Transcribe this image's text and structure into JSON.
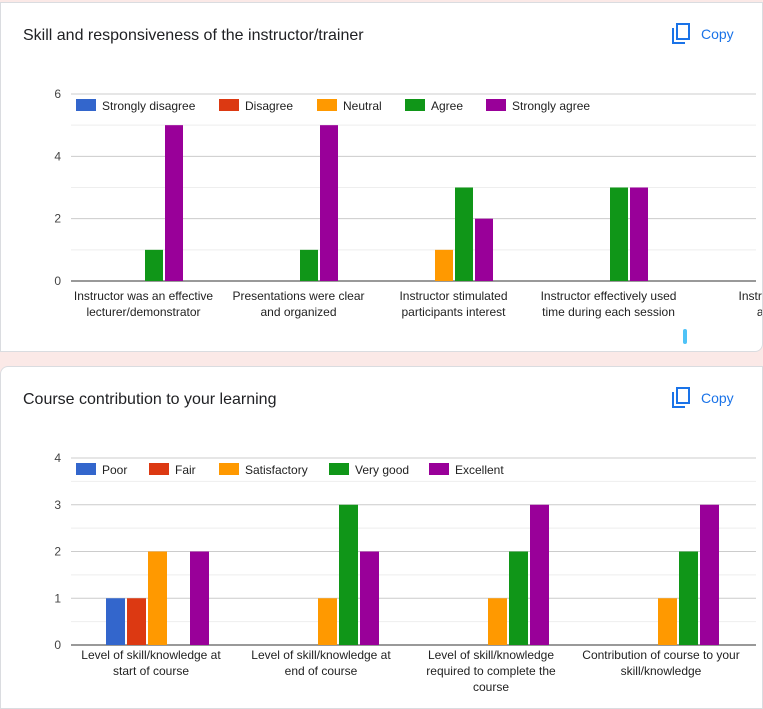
{
  "chart_data": [
    {
      "type": "bar",
      "title": "Skill and responsiveness of the instructor/trainer",
      "copy_label": "Copy",
      "ylim": [
        0,
        6
      ],
      "yticks": [
        "0",
        "2",
        "4",
        "6"
      ],
      "grid": true,
      "legend_position": "top",
      "categories": [
        [
          "Instructor was an effective",
          "lecturer/demonstrator"
        ],
        [
          "Presentations were clear",
          "and organized"
        ],
        [
          "Instructor stimulated",
          "participants interest"
        ],
        [
          "Instructor effectively used",
          "time during each session"
        ],
        [
          "Instructor",
          "an"
        ]
      ],
      "series": [
        {
          "name": "Strongly disagree",
          "color": "#3366cc",
          "values": [
            0,
            0,
            0,
            0,
            null
          ]
        },
        {
          "name": "Disagree",
          "color": "#dc3912",
          "values": [
            0,
            0,
            0,
            0,
            null
          ]
        },
        {
          "name": "Neutral",
          "color": "#ff9900",
          "values": [
            0,
            0,
            1,
            0,
            null
          ]
        },
        {
          "name": "Agree",
          "color": "#109618",
          "values": [
            1,
            1,
            3,
            3,
            null
          ]
        },
        {
          "name": "Strongly agree",
          "color": "#990099",
          "values": [
            5,
            5,
            2,
            3,
            null
          ]
        }
      ]
    },
    {
      "type": "bar",
      "title": "Course contribution to your learning",
      "copy_label": "Copy",
      "ylim": [
        0,
        4
      ],
      "yticks": [
        "0",
        "1",
        "2",
        "3",
        "4"
      ],
      "grid": true,
      "legend_position": "top",
      "categories": [
        [
          "Level of skill/knowledge at",
          "start of course"
        ],
        [
          "Level of skill/knowledge at",
          "end of course"
        ],
        [
          "Level of skill/knowledge",
          "required to complete the",
          "course"
        ],
        [
          "Contribution of course to your",
          "skill/knowledge"
        ]
      ],
      "series": [
        {
          "name": "Poor",
          "color": "#3366cc",
          "values": [
            1,
            0,
            0,
            0
          ]
        },
        {
          "name": "Fair",
          "color": "#dc3912",
          "values": [
            1,
            0,
            0,
            0
          ]
        },
        {
          "name": "Satisfactory",
          "color": "#ff9900",
          "values": [
            2,
            1,
            1,
            1
          ]
        },
        {
          "name": "Very good",
          "color": "#109618",
          "values": [
            0,
            3,
            2,
            2
          ]
        },
        {
          "name": "Excellent",
          "color": "#990099",
          "values": [
            2,
            2,
            3,
            3
          ]
        }
      ]
    }
  ]
}
